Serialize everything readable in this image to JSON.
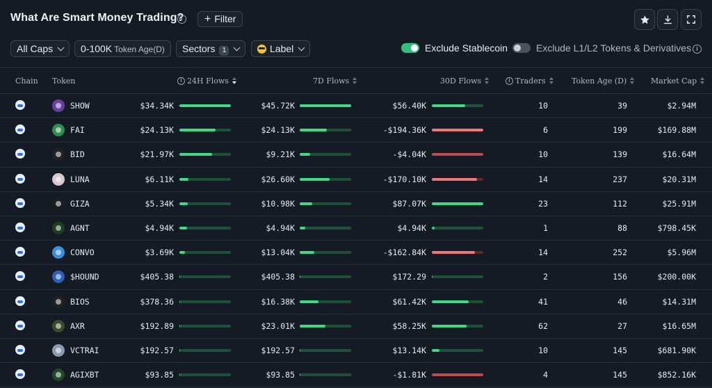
{
  "header": {
    "title": "What Are Smart Money Trading?",
    "info_icon": "info-icon",
    "filter_label": "Filter",
    "actions": [
      "star-icon",
      "download-icon",
      "expand-icon"
    ]
  },
  "toolbar": {
    "caps": "All Caps",
    "token_age_value": "0-100K",
    "token_age_label": "Token Age(D)",
    "sectors": "Sectors",
    "sectors_count": "1",
    "label": "Label",
    "exclude_stablecoin": "Exclude Stablecoin",
    "exclude_stablecoin_on": true,
    "exclude_l1l2": "Exclude L1/L2 Tokens & Derivatives",
    "exclude_l1l2_on": false
  },
  "colors": {
    "background": "#141b24",
    "positive": "#3ddc84",
    "negative": "#f07878",
    "toggle_on": "#2ec27e"
  },
  "table": {
    "columns": {
      "chain": "Chain",
      "token": "Token",
      "flows_24h": "24H Flows",
      "flows_7d": "7D Flows",
      "flows_30d": "30D Flows",
      "traders": "Traders",
      "token_age": "Token Age (D)",
      "market_cap": "Market Cap"
    },
    "rows": [
      {
        "token": "SHOW",
        "icon_color": "#6b3fa0",
        "f24": "$34.34K",
        "f24_pct": 1.0,
        "f7": "$45.72K",
        "f7_pct": 1.0,
        "f30": "$56.40K",
        "f30_pct": 0.65,
        "f30_neg": false,
        "traders": "10",
        "age": "39",
        "mcap": "$2.94M"
      },
      {
        "token": "FAI",
        "icon_color": "#2f8f4e",
        "f24": "$24.13K",
        "f24_pct": 0.7,
        "f7": "$24.13K",
        "f7_pct": 0.53,
        "f30": "-$194.36K",
        "f30_pct": 1.0,
        "f30_neg": true,
        "traders": "6",
        "age": "199",
        "mcap": "$169.88M"
      },
      {
        "token": "BID",
        "icon_color": "#222222",
        "f24": "$21.97K",
        "f24_pct": 0.64,
        "f7": "$9.21K",
        "f7_pct": 0.2,
        "f30": "-$4.04K",
        "f30_pct": 1.0,
        "f30_neg": true,
        "f30_dark": true,
        "traders": "10",
        "age": "139",
        "mcap": "$16.64M"
      },
      {
        "token": "LUNA",
        "icon_color": "#d9c8d0",
        "f24": "$6.11K",
        "f24_pct": 0.18,
        "f7": "$26.60K",
        "f7_pct": 0.58,
        "f30": "-$170.10K",
        "f30_pct": 0.88,
        "f30_neg": true,
        "traders": "14",
        "age": "237",
        "mcap": "$20.31M"
      },
      {
        "token": "GIZA",
        "icon_color": "#1c1c1c",
        "f24": "$5.34K",
        "f24_pct": 0.16,
        "f7": "$10.98K",
        "f7_pct": 0.24,
        "f30": "$87.07K",
        "f30_pct": 1.0,
        "f30_neg": false,
        "traders": "23",
        "age": "112",
        "mcap": "$25.91M"
      },
      {
        "token": "AGNT",
        "icon_color": "#1a3d1f",
        "f24": "$4.94K",
        "f24_pct": 0.15,
        "f7": "$4.94K",
        "f7_pct": 0.11,
        "f30": "$4.94K",
        "f30_pct": 0.06,
        "f30_neg": false,
        "traders": "1",
        "age": "88",
        "mcap": "$798.45K"
      },
      {
        "token": "CONVO",
        "icon_color": "#3a8fd8",
        "f24": "$3.69K",
        "f24_pct": 0.11,
        "f7": "$13.04K",
        "f7_pct": 0.29,
        "f30": "-$162.84K",
        "f30_pct": 0.84,
        "f30_neg": true,
        "traders": "14",
        "age": "252",
        "mcap": "$5.96M"
      },
      {
        "token": "$HOUND",
        "icon_color": "#2c5fb8",
        "f24": "$405.38",
        "f24_pct": 0.02,
        "f7": "$405.38",
        "f7_pct": 0.01,
        "f30": "$172.29",
        "f30_pct": 0.01,
        "f30_neg": false,
        "traders": "2",
        "age": "156",
        "mcap": "$200.00K"
      },
      {
        "token": "BIOS",
        "icon_color": "#202020",
        "f24": "$378.36",
        "f24_pct": 0.01,
        "f7": "$16.38K",
        "f7_pct": 0.36,
        "f30": "$61.42K",
        "f30_pct": 0.71,
        "f30_neg": false,
        "traders": "41",
        "age": "46",
        "mcap": "$14.31M"
      },
      {
        "token": "AXR",
        "icon_color": "#3d4a2a",
        "f24": "$192.89",
        "f24_pct": 0.01,
        "f7": "$23.01K",
        "f7_pct": 0.5,
        "f30": "$58.25K",
        "f30_pct": 0.67,
        "f30_neg": false,
        "traders": "62",
        "age": "27",
        "mcap": "$16.65M"
      },
      {
        "token": "VCTRAI",
        "icon_color": "#8a9cb0",
        "f24": "$192.57",
        "f24_pct": 0.01,
        "f7": "$192.57",
        "f7_pct": 0.01,
        "f30": "$13.14K",
        "f30_pct": 0.15,
        "f30_neg": false,
        "traders": "10",
        "age": "145",
        "mcap": "$681.90K"
      },
      {
        "token": "AGIXBT",
        "icon_color": "#1f4a2a",
        "f24": "$93.85",
        "f24_pct": 0.01,
        "f7": "$93.85",
        "f7_pct": 0.01,
        "f30": "-$1.81K",
        "f30_pct": 1.0,
        "f30_neg": true,
        "f30_dark": true,
        "traders": "4",
        "age": "145",
        "mcap": "$852.16K"
      }
    ]
  }
}
